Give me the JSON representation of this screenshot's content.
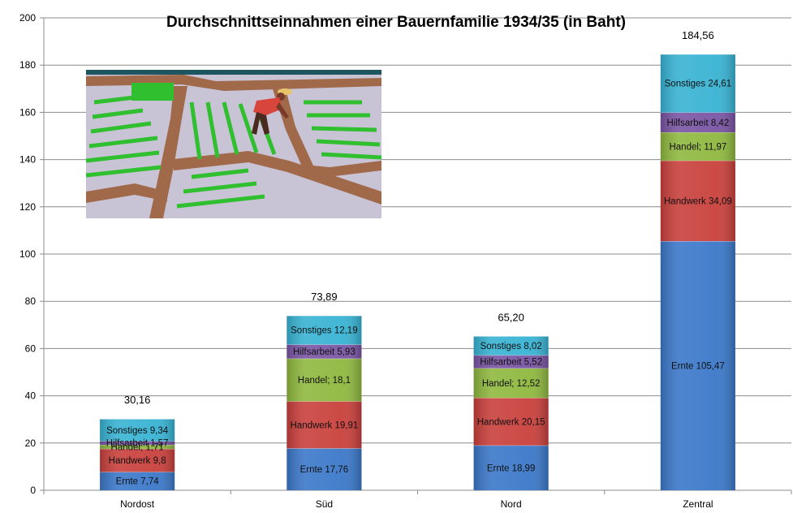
{
  "chart_data": {
    "type": "bar",
    "stacked": true,
    "title": "Durchschnittseinnahmen einer Bauernfamilie 1934/35  (in Baht)",
    "categories": [
      "Nordost",
      "Süd",
      "Nord",
      "Zentral"
    ],
    "ylim": [
      0,
      200
    ],
    "yticks": [
      0,
      20,
      40,
      60,
      80,
      100,
      120,
      140,
      160,
      180,
      200
    ],
    "grid": true,
    "legend": "none",
    "totals": [
      30.16,
      73.89,
      65.2,
      184.56
    ],
    "total_labels": [
      "30,16",
      "73,89",
      "65,20",
      "184,56"
    ],
    "series": [
      {
        "key": "ernte",
        "color": "#3b78c9",
        "values": [
          7.74,
          17.76,
          18.99,
          105.47
        ],
        "labels": [
          "Ernte 7,74",
          "Ernte 17,76",
          "Ernte 18,99",
          "Ernte 105,47"
        ]
      },
      {
        "key": "handwerk",
        "color": "#c9403c",
        "values": [
          9.8,
          19.91,
          20.15,
          34.09
        ],
        "labels": [
          "Handwerk 9,8",
          "Handwerk 19,91",
          "Handwerk 20,15",
          "Handwerk 34,09"
        ]
      },
      {
        "key": "handel",
        "color": "#8fb83f",
        "values": [
          1.71,
          18.1,
          12.52,
          11.97
        ],
        "labels": [
          "Handel; 1,71",
          "Handel; 18,1",
          "Handel; 12,52",
          "Handel; 11,97"
        ]
      },
      {
        "key": "hilfsarbeit",
        "color": "#7a55a4",
        "values": [
          1.57,
          5.93,
          5.52,
          8.42
        ],
        "labels": [
          "Hilfsarbeit 1,57",
          "Hilfsarbeit 5,93",
          "Hilfsarbeit 5,52",
          "Hilfsarbeit 8,42"
        ]
      },
      {
        "key": "sonstiges",
        "color": "#38b3d3",
        "values": [
          9.34,
          12.19,
          8.02,
          24.61
        ],
        "labels": [
          "Sonstiges 9,34",
          "Sonstiges 12,19",
          "Sonstiges 8,02",
          "Sonstiges 24,61"
        ]
      }
    ]
  },
  "illustration": {
    "name": "rice-farmer-in-paddy-field-illustration",
    "colors": {
      "field": "#c9c3d6",
      "dike": "#a06a4a",
      "rice": "#2fbf2f",
      "sky_strip": "#1d5560"
    }
  }
}
